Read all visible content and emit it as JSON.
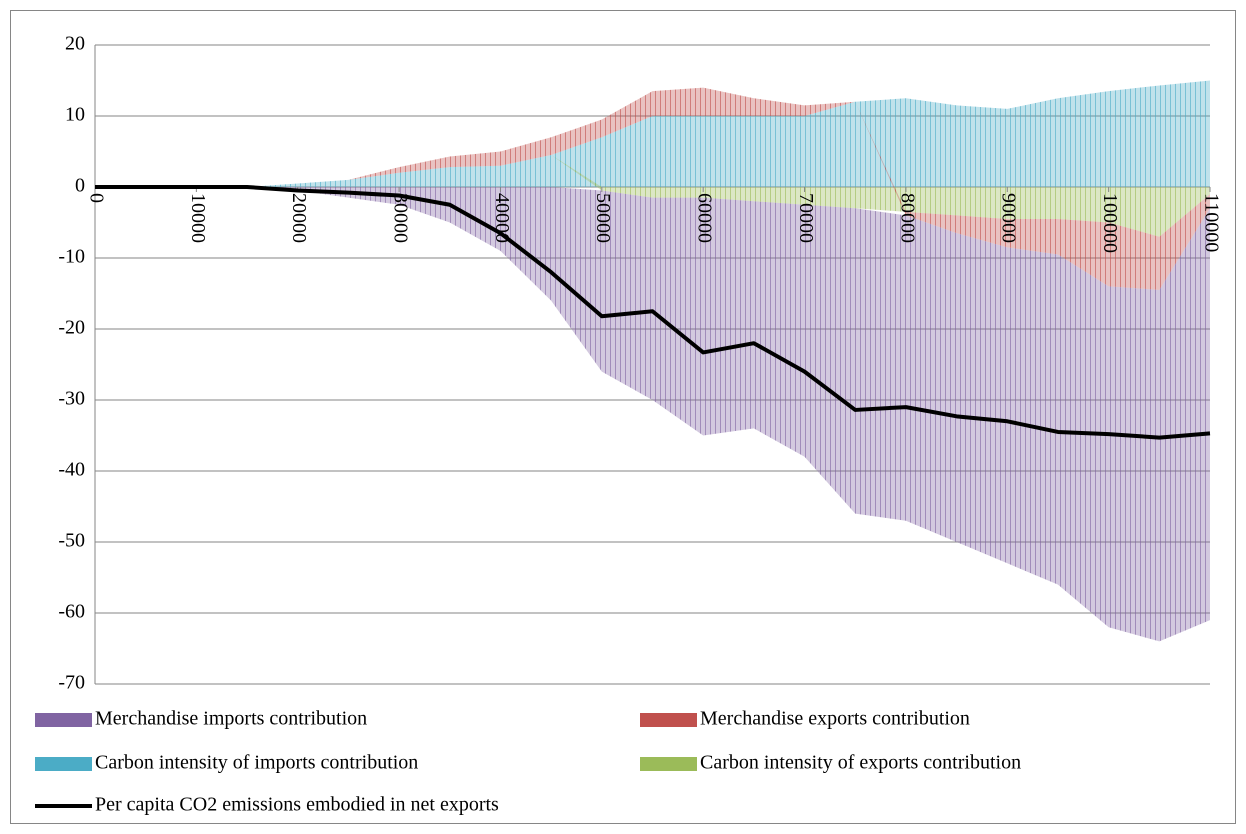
{
  "chart_data": {
    "type": "stacked-area-line",
    "x": [
      0,
      5000,
      10000,
      15000,
      20000,
      25000,
      30000,
      35000,
      40000,
      45000,
      50000,
      55000,
      60000,
      65000,
      70000,
      75000,
      80000,
      85000,
      90000,
      95000,
      100000,
      105000,
      110000
    ],
    "series": [
      {
        "name": "Merchandise imports contribution",
        "color": "#8064a2",
        "kind": "area",
        "values": [
          0,
          0,
          0,
          0,
          -0.5,
          -1.5,
          -2.5,
          -5,
          -9,
          -16,
          -25.5,
          -28.5,
          -33.5,
          -32,
          -35.5,
          -43,
          -43,
          -43.5,
          -44.5,
          -46.5,
          -48,
          -49.5,
          -58
        ]
      },
      {
        "name": "Merchandise exports contribution",
        "color": "#c0504d",
        "kind": "area",
        "values": [
          0,
          0,
          0,
          0,
          0,
          0,
          0.8,
          1.5,
          2,
          2.5,
          2.5,
          3.5,
          4,
          2.5,
          1.5,
          0,
          -0.5,
          -2.5,
          -4,
          -5,
          -9,
          -7.5,
          -2
        ]
      },
      {
        "name": "Carbon intensity of imports contribution",
        "color": "#4bacc6",
        "kind": "area",
        "values": [
          0,
          0,
          0,
          0,
          0.5,
          1,
          2,
          2.8,
          3,
          4.5,
          7,
          10,
          10,
          10,
          10,
          12,
          12.5,
          11.5,
          11,
          12.5,
          13.5,
          14.3,
          15
        ]
      },
      {
        "name": "Carbon intensity of exports contribution",
        "color": "#9bbb59",
        "kind": "area",
        "values": [
          0,
          0,
          0,
          0,
          0,
          0,
          0,
          0,
          0,
          0,
          -0.5,
          -1.5,
          -1.5,
          -2,
          -2.5,
          -3,
          -3.5,
          -4,
          -4.5,
          -4.5,
          -5,
          -7,
          -1
        ]
      },
      {
        "name": "Per capita CO2 emissions embodied in net exports",
        "color": "#000000",
        "kind": "line",
        "values": [
          0,
          0,
          0,
          0,
          -0.5,
          -0.8,
          -1.2,
          -2.5,
          -6.5,
          -12,
          -18.2,
          -17.5,
          -23.3,
          -22,
          -26,
          -31.4,
          -31,
          -32.3,
          -33,
          -34.5,
          -34.8,
          -35.3,
          -34.7
        ]
      }
    ],
    "xlim": [
      0,
      110000
    ],
    "xticks": [
      0,
      10000,
      20000,
      30000,
      40000,
      50000,
      60000,
      70000,
      80000,
      90000,
      100000,
      110000
    ],
    "ylim": [
      -70,
      20
    ],
    "yticks": [
      -70,
      -60,
      -50,
      -40,
      -30,
      -20,
      -10,
      0,
      10,
      20
    ],
    "grid": true,
    "legend": "bottom"
  }
}
